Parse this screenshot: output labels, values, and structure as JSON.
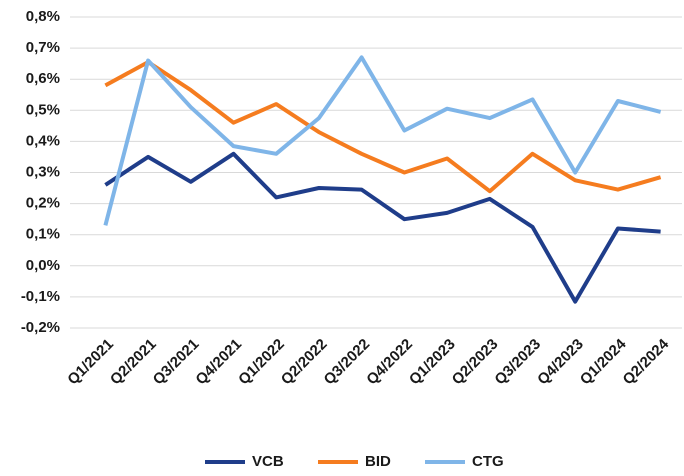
{
  "chart_data": {
    "type": "line",
    "categories": [
      "Q1/2021",
      "Q2/2021",
      "Q3/2021",
      "Q4/2021",
      "Q1/2022",
      "Q2/2022",
      "Q3/2022",
      "Q4/2022",
      "Q1/2023",
      "Q2/2023",
      "Q3/2023",
      "Q4/2023",
      "Q1/2024",
      "Q2/2024"
    ],
    "series": [
      {
        "name": "VCB",
        "color": "#1f3d8a",
        "values": [
          0.26,
          0.35,
          0.27,
          0.36,
          0.22,
          0.25,
          0.245,
          0.15,
          0.17,
          0.215,
          0.125,
          -0.115,
          0.12,
          0.11
        ]
      },
      {
        "name": "BID",
        "color": "#f57c1f",
        "values": [
          0.58,
          0.655,
          0.565,
          0.46,
          0.52,
          0.43,
          0.36,
          0.3,
          0.345,
          0.24,
          0.36,
          0.275,
          0.245,
          0.285
        ]
      },
      {
        "name": "CTG",
        "color": "#7fb5e8",
        "values": [
          0.13,
          0.66,
          0.51,
          0.385,
          0.36,
          0.475,
          0.67,
          0.435,
          0.505,
          0.475,
          0.535,
          0.3,
          0.53,
          0.495
        ]
      }
    ],
    "ylim": [
      -0.2,
      0.8
    ],
    "yticks": [
      {
        "value": -0.2,
        "label": "-0,2%"
      },
      {
        "value": -0.1,
        "label": "-0,1%"
      },
      {
        "value": 0,
        "label": "0,0%"
      },
      {
        "value": 0.1,
        "label": "0,1%"
      },
      {
        "value": 0.2,
        "label": "0,2%"
      },
      {
        "value": 0.3,
        "label": "0,3%"
      },
      {
        "value": 0.4,
        "label": "0,4%"
      },
      {
        "value": 0.5,
        "label": "0,5%"
      },
      {
        "value": 0.6,
        "label": "0,6%"
      },
      {
        "value": 0.7,
        "label": "0,7%"
      },
      {
        "value": 0.8,
        "label": "0,8%"
      }
    ],
    "grid": true,
    "legend": "bottom"
  }
}
